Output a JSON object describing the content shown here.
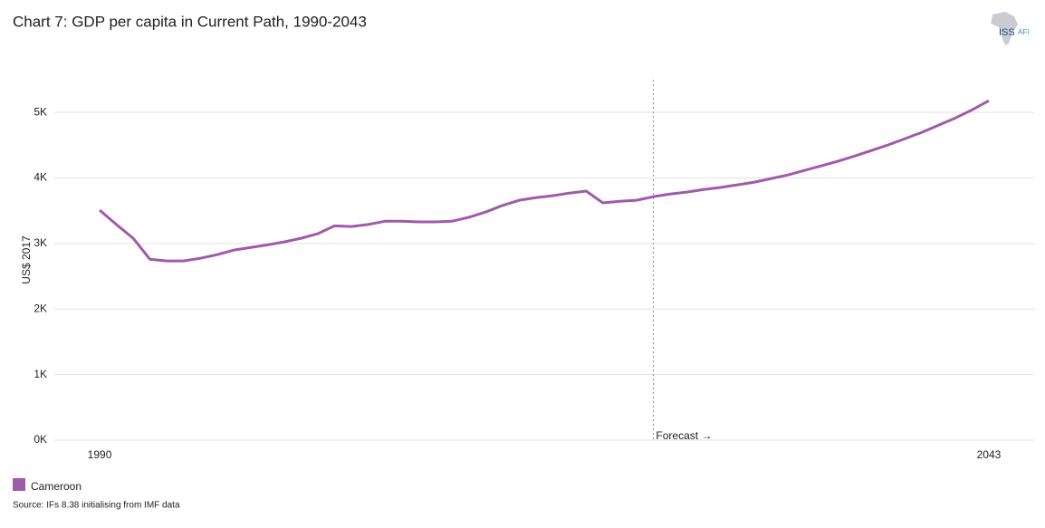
{
  "chart_data": {
    "type": "line",
    "title": "Chart 7: GDP per capita in Current Path, 1990-2043",
    "ylabel": "US$ 2017",
    "source": "Source: IFs 8.38 initialising from IMF data",
    "logo": {
      "left": "ISS",
      "right": "AFI"
    },
    "x": [
      1990,
      1991,
      1992,
      1993,
      1994,
      1995,
      1996,
      1997,
      1998,
      1999,
      2000,
      2001,
      2002,
      2003,
      2004,
      2005,
      2006,
      2007,
      2008,
      2009,
      2010,
      2011,
      2012,
      2013,
      2014,
      2015,
      2016,
      2017,
      2018,
      2019,
      2020,
      2021,
      2022,
      2023,
      2024,
      2025,
      2026,
      2027,
      2028,
      2029,
      2030,
      2031,
      2032,
      2033,
      2034,
      2035,
      2036,
      2037,
      2038,
      2039,
      2040,
      2041,
      2042,
      2043
    ],
    "series": [
      {
        "name": "Cameroon",
        "color": "#a05aaa",
        "values": [
          3510,
          3290,
          3080,
          2760,
          2735,
          2735,
          2775,
          2830,
          2900,
          2940,
          2980,
          3025,
          3080,
          3150,
          3270,
          3260,
          3290,
          3340,
          3340,
          3330,
          3330,
          3340,
          3400,
          3480,
          3580,
          3660,
          3700,
          3730,
          3770,
          3800,
          3620,
          3645,
          3660,
          3715,
          3755,
          3785,
          3825,
          3855,
          3895,
          3935,
          3990,
          4045,
          4115,
          4185,
          4255,
          4335,
          4420,
          4505,
          4600,
          4695,
          4805,
          4915,
          5040,
          5180
        ]
      }
    ],
    "xlim": [
      1987.3,
      2045.7
    ],
    "xticks": [
      1990,
      2043
    ],
    "ylim": [
      0,
      5500
    ],
    "yticks": [
      {
        "value": 0,
        "label": "0K"
      },
      {
        "value": 1000,
        "label": "1K"
      },
      {
        "value": 2000,
        "label": "2K"
      },
      {
        "value": 3000,
        "label": "3K"
      },
      {
        "value": 4000,
        "label": "4K"
      },
      {
        "value": 5000,
        "label": "5K"
      }
    ],
    "grid": true,
    "annotation": {
      "text": "Forecast →",
      "x": 2023
    }
  }
}
